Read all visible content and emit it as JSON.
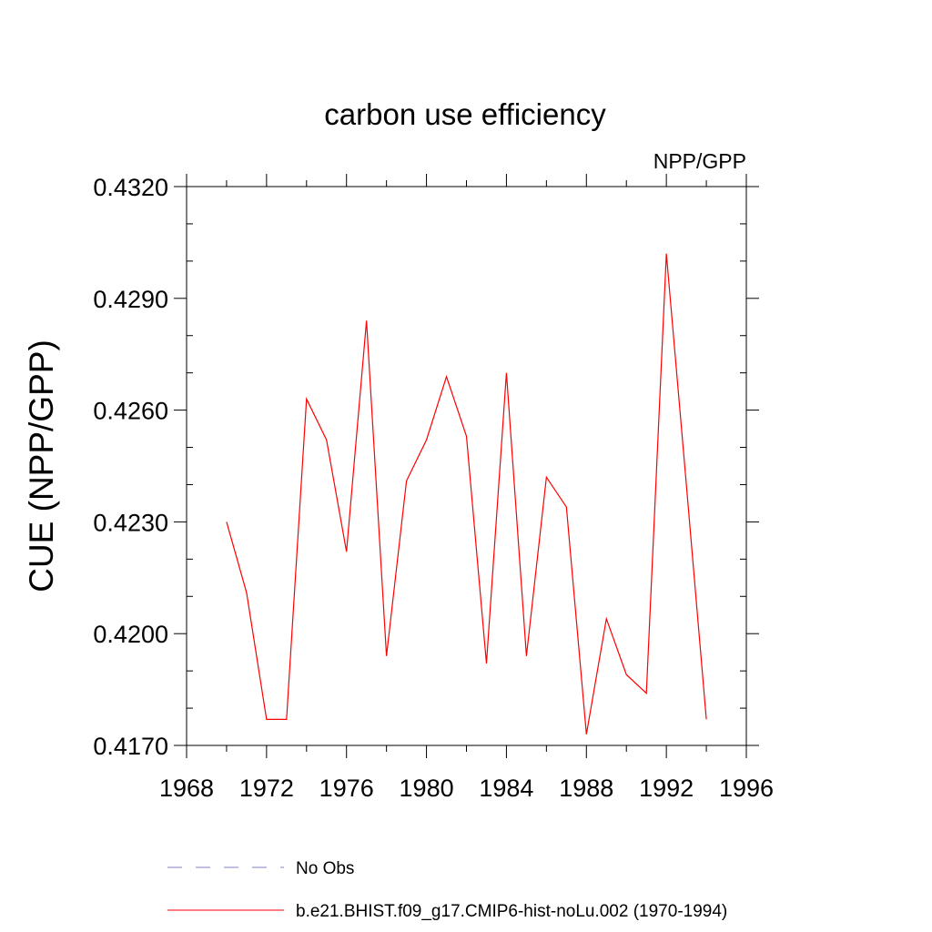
{
  "chart_data": {
    "type": "line",
    "title": "carbon use efficiency",
    "subtitle": "NPP/GPP",
    "xlabel": "",
    "ylabel": "CUE  (NPP/GPP)",
    "xlim": [
      1968,
      1996
    ],
    "ylim": [
      0.417,
      0.432
    ],
    "xticks": [
      1968,
      1972,
      1976,
      1980,
      1984,
      1988,
      1992,
      1996
    ],
    "xtick_labels": [
      "1968",
      "1972",
      "1976",
      "1980",
      "1984",
      "1988",
      "1992",
      "1996"
    ],
    "yticks": [
      0.417,
      0.42,
      0.423,
      0.426,
      0.429,
      0.432
    ],
    "ytick_labels": [
      "0.4170",
      "0.4200",
      "0.4230",
      "0.4260",
      "0.4290",
      "0.4320"
    ],
    "grid": false,
    "legend_position": "bottom",
    "series": [
      {
        "name": "b.e21.BHIST.f09_g17.CMIP6-hist-noLu.002 (1970-1994)",
        "color": "#ff0000",
        "style": "solid",
        "x": [
          1970,
          1971,
          1972,
          1973,
          1974,
          1975,
          1976,
          1977,
          1978,
          1979,
          1980,
          1981,
          1982,
          1983,
          1984,
          1985,
          1986,
          1987,
          1988,
          1989,
          1990,
          1991,
          1992,
          1993,
          1994
        ],
        "y": [
          0.423,
          0.4211,
          0.4177,
          0.4177,
          0.4263,
          0.4252,
          0.4222,
          0.4284,
          0.4194,
          0.4241,
          0.4252,
          0.4269,
          0.4253,
          0.4192,
          0.427,
          0.4194,
          0.4242,
          0.4234,
          0.4173,
          0.4204,
          0.4189,
          0.4184,
          0.4302,
          0.424,
          0.4177
        ]
      }
    ],
    "legend": [
      {
        "label": "No Obs",
        "color": "#8080c0",
        "style": "dashed"
      },
      {
        "label": "b.e21.BHIST.f09_g17.CMIP6-hist-noLu.002 (1970-1994)",
        "color": "#ff0000",
        "style": "solid"
      }
    ]
  }
}
